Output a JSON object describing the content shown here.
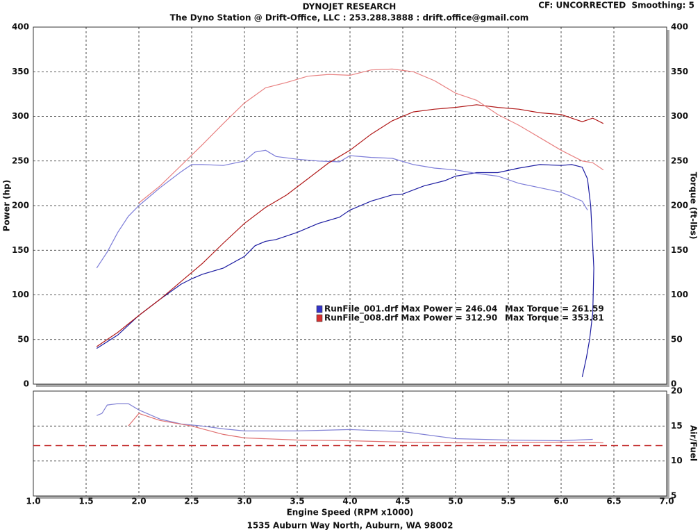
{
  "chart_data": [
    {
      "type": "line",
      "title": "DYNOJET RESEARCH",
      "subtitle": "The Dyno Station @ Drift-Office, LLC : 253.288.3888 : drift.office@gmail.com",
      "corner_note": "CF: UNCORRECTED  Smoothing: 5",
      "ylabel": "Power (hp)",
      "y2label": "Torque (ft-lbs)",
      "xlim": [
        1,
        7
      ],
      "ylim": [
        0,
        400
      ],
      "y2lim": [
        0,
        400
      ],
      "yticks": [
        0,
        50,
        100,
        150,
        200,
        250,
        300,
        350,
        400
      ],
      "y2ticks": [
        0,
        50,
        100,
        150,
        200,
        250,
        300,
        350,
        400
      ],
      "grid": true,
      "series": [
        {
          "color": "#1a1aa0",
          "axis": "y",
          "x": [
            1.6,
            1.8,
            2.0,
            2.2,
            2.4,
            2.5,
            2.6,
            2.8,
            3.0,
            3.1,
            3.2,
            3.3,
            3.5,
            3.7,
            3.9,
            4.0,
            4.2,
            4.4,
            4.5,
            4.7,
            4.9,
            5.0,
            5.2,
            5.4,
            5.6,
            5.8,
            6.0,
            6.1,
            6.2,
            6.25,
            6.28,
            6.31,
            6.3,
            6.27,
            6.24,
            6.2
          ],
          "values": [
            40,
            55,
            77,
            95,
            112,
            118,
            123,
            130,
            143,
            155,
            160,
            162,
            170,
            180,
            187,
            195,
            205,
            212,
            213,
            222,
            228,
            233,
            237,
            237,
            242,
            246,
            245,
            246,
            243,
            230,
            200,
            130,
            80,
            50,
            30,
            8
          ]
        },
        {
          "color": "#7c7cd8",
          "axis": "y2",
          "x": [
            1.6,
            1.7,
            1.8,
            1.9,
            2.0,
            2.2,
            2.4,
            2.5,
            2.6,
            2.8,
            3.0,
            3.1,
            3.2,
            3.3,
            3.5,
            3.7,
            3.9,
            4.0,
            4.2,
            4.4,
            4.6,
            4.8,
            5.0,
            5.2,
            5.4,
            5.6,
            5.8,
            6.0,
            6.2,
            6.25
          ],
          "values": [
            130,
            148,
            170,
            188,
            200,
            220,
            238,
            246,
            246,
            245,
            250,
            260,
            262,
            255,
            252,
            250,
            249,
            256,
            254,
            253,
            246,
            242,
            240,
            236,
            233,
            225,
            220,
            215,
            205,
            195
          ]
        },
        {
          "color": "#b01818",
          "axis": "y",
          "x": [
            1.6,
            1.8,
            2.0,
            2.2,
            2.4,
            2.6,
            2.8,
            3.0,
            3.2,
            3.4,
            3.6,
            3.8,
            4.0,
            4.2,
            4.4,
            4.6,
            4.8,
            5.0,
            5.2,
            5.4,
            5.6,
            5.8,
            6.0,
            6.1,
            6.2,
            6.3,
            6.4
          ],
          "values": [
            42,
            58,
            77,
            95,
            115,
            135,
            158,
            180,
            198,
            212,
            230,
            248,
            262,
            280,
            295,
            305,
            308,
            310,
            313,
            310,
            308,
            304,
            302,
            298,
            294,
            298,
            292
          ]
        },
        {
          "color": "#e88080",
          "axis": "y2",
          "x": [
            2.0,
            2.2,
            2.4,
            2.6,
            2.8,
            3.0,
            3.2,
            3.4,
            3.6,
            3.8,
            4.0,
            4.2,
            4.4,
            4.6,
            4.8,
            5.0,
            5.2,
            5.4,
            5.6,
            5.8,
            6.0,
            6.2,
            6.3,
            6.4
          ],
          "values": [
            203,
            222,
            245,
            268,
            292,
            315,
            332,
            338,
            345,
            347,
            346,
            352,
            353,
            350,
            340,
            326,
            318,
            302,
            290,
            276,
            262,
            250,
            248,
            240
          ]
        }
      ],
      "legend": [
        {
          "text": "RunFile_001.drf Max Power = 246.04",
          "torque_text": "Max Torque = 261.59",
          "color": "#3434c8"
        },
        {
          "text": "RunFile_008.drf Max Power = 312.90",
          "torque_text": "Max Torque = 353.81",
          "color": "#d83030"
        }
      ]
    },
    {
      "type": "line",
      "y2label": "Air/Fuel",
      "xlabel": "Engine Speed (RPM x1000)",
      "footer": "1535 Auburn Way North, Auburn, WA 98002",
      "xlim": [
        1,
        7
      ],
      "y2lim": [
        5,
        20
      ],
      "xticks": [
        {
          "value": 1,
          "label": "1.0"
        },
        1.5,
        {
          "value": 2,
          "label": "2.0"
        },
        2.5,
        {
          "value": 3,
          "label": "3.0"
        },
        3.5,
        {
          "value": 4,
          "label": "4.0"
        },
        4.5,
        {
          "value": 5,
          "label": "5.0"
        },
        5.5,
        {
          "value": 6,
          "label": "6.0"
        },
        6.5,
        {
          "value": 7,
          "label": "7.0"
        }
      ],
      "y2ticks": [
        5,
        10,
        15,
        20
      ],
      "grid": true,
      "reference_line": 12.2,
      "reference_color": "#c02020",
      "series": [
        {
          "color": "#8080d4",
          "axis": "y2",
          "x": [
            1.6,
            1.65,
            1.7,
            1.8,
            1.9,
            2.0,
            2.2,
            2.4,
            2.6,
            2.8,
            3.0,
            3.5,
            4.0,
            4.5,
            5.0,
            5.5,
            6.0,
            6.3
          ],
          "values": [
            16.5,
            16.8,
            18,
            18.2,
            18.2,
            17.3,
            16,
            15.3,
            15,
            14.6,
            14.3,
            14.3,
            14.5,
            14.2,
            13.2,
            13,
            12.9,
            13.1
          ]
        },
        {
          "color": "#e07070",
          "axis": "y2",
          "x": [
            1.9,
            2.0,
            2.2,
            2.5,
            2.8,
            3.0,
            3.5,
            4.0,
            4.5,
            5.0,
            5.5,
            6.0,
            6.4
          ],
          "values": [
            15,
            16.8,
            15.8,
            15,
            13.8,
            13.3,
            13,
            12.9,
            12.7,
            12.6,
            12.6,
            12.7,
            12.6
          ]
        }
      ]
    }
  ]
}
